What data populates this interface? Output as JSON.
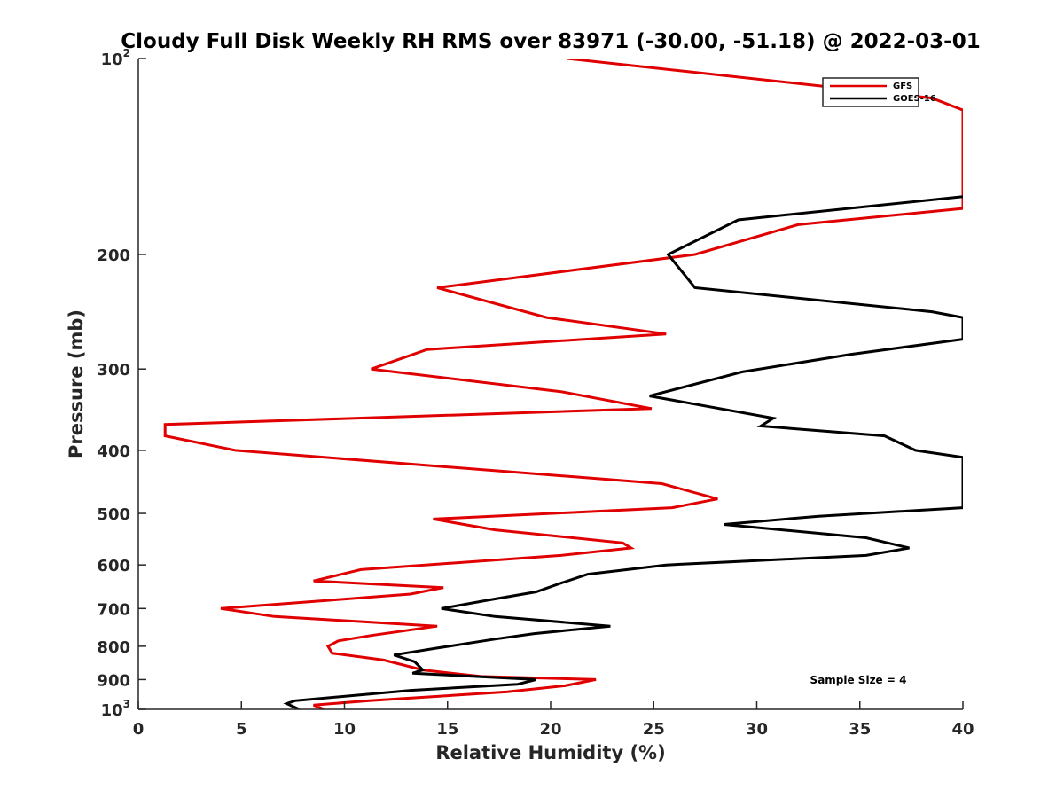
{
  "chart_data": {
    "type": "line",
    "title": "Cloudy Full Disk Weekly RH RMS over 83971 (-30.00, -51.18) @ 2022-03-01",
    "xlabel": "Relative Humidity (%)",
    "ylabel": "Pressure (mb)",
    "xlim": [
      0,
      40
    ],
    "ylim": [
      100,
      1000
    ],
    "yscale": "log",
    "y_reversed": true,
    "grid": false,
    "legend_position": "top-right",
    "x_ticks": [
      "0",
      "5",
      "10",
      "15",
      "20",
      "25",
      "30",
      "35",
      "40"
    ],
    "y_ticks": [
      {
        "value": 100,
        "base": "10",
        "exp": "2"
      },
      {
        "value": 200,
        "label": "200"
      },
      {
        "value": 300,
        "label": "300"
      },
      {
        "value": 400,
        "label": "400"
      },
      {
        "value": 500,
        "label": "500"
      },
      {
        "value": 600,
        "label": "600"
      },
      {
        "value": 700,
        "label": "700"
      },
      {
        "value": 800,
        "label": "800"
      },
      {
        "value": 900,
        "label": "900"
      },
      {
        "value": 1000,
        "base": "10",
        "exp": "3"
      }
    ],
    "annotation": "Sample Size = 4",
    "series": [
      {
        "name": "GFS",
        "color": "#e00000",
        "points": [
          [
            20.8,
            100
          ],
          [
            38.5,
            115
          ],
          [
            40,
            120
          ],
          [
            40,
            140
          ],
          [
            40,
            170
          ],
          [
            32,
            180
          ],
          [
            27,
            200
          ],
          [
            14.5,
            225
          ],
          [
            19.8,
            250
          ],
          [
            25.6,
            265
          ],
          [
            14,
            280
          ],
          [
            11.3,
            300
          ],
          [
            20.5,
            325
          ],
          [
            24.9,
            345
          ],
          [
            1.3,
            365
          ],
          [
            1.3,
            380
          ],
          [
            4.7,
            400
          ],
          [
            25.4,
            450
          ],
          [
            28.1,
            475
          ],
          [
            25.9,
            490
          ],
          [
            14.3,
            510
          ],
          [
            17.3,
            530
          ],
          [
            23.5,
            555
          ],
          [
            23.9,
            565
          ],
          [
            20.5,
            580
          ],
          [
            10.8,
            610
          ],
          [
            8.5,
            635
          ],
          [
            14.8,
            650
          ],
          [
            13.2,
            665
          ],
          [
            9.2,
            680
          ],
          [
            4.0,
            700
          ],
          [
            6.6,
            720
          ],
          [
            14.5,
            745
          ],
          [
            11.3,
            770
          ],
          [
            9.7,
            785
          ],
          [
            9.2,
            800
          ],
          [
            9.4,
            820
          ],
          [
            11.9,
            840
          ],
          [
            13.8,
            870
          ],
          [
            16.6,
            890
          ],
          [
            22.2,
            900
          ],
          [
            20.7,
            920
          ],
          [
            17.9,
            940
          ],
          [
            11.2,
            970
          ],
          [
            8.5,
            985
          ],
          [
            9.0,
            1000
          ]
        ]
      },
      {
        "name": "GOES-16",
        "color": "#000000",
        "points": [
          [
            40,
            163
          ],
          [
            29.1,
            177
          ],
          [
            25.7,
            200
          ],
          [
            27,
            225
          ],
          [
            38.5,
            245
          ],
          [
            40,
            250
          ],
          [
            40,
            270
          ],
          [
            34.5,
            285
          ],
          [
            29.3,
            303
          ],
          [
            24.8,
            330
          ],
          [
            30.8,
            357
          ],
          [
            30.2,
            367
          ],
          [
            36.2,
            380
          ],
          [
            37.7,
            400
          ],
          [
            40,
            410
          ],
          [
            40,
            490
          ],
          [
            33,
            505
          ],
          [
            28.4,
            520
          ],
          [
            35.3,
            545
          ],
          [
            37.4,
            565
          ],
          [
            35.3,
            580
          ],
          [
            25.6,
            600
          ],
          [
            21.8,
            620
          ],
          [
            20.5,
            640
          ],
          [
            19.3,
            660
          ],
          [
            16.9,
            680
          ],
          [
            14.7,
            700
          ],
          [
            17.3,
            720
          ],
          [
            22.9,
            745
          ],
          [
            19.2,
            765
          ],
          [
            17.3,
            780
          ],
          [
            14.5,
            805
          ],
          [
            12.4,
            825
          ],
          [
            13.4,
            845
          ],
          [
            13.8,
            870
          ],
          [
            13.3,
            880
          ],
          [
            19.3,
            900
          ],
          [
            18.4,
            915
          ],
          [
            13.2,
            935
          ],
          [
            7.6,
            970
          ],
          [
            7.2,
            980
          ],
          [
            7.8,
            1000
          ]
        ]
      }
    ]
  }
}
